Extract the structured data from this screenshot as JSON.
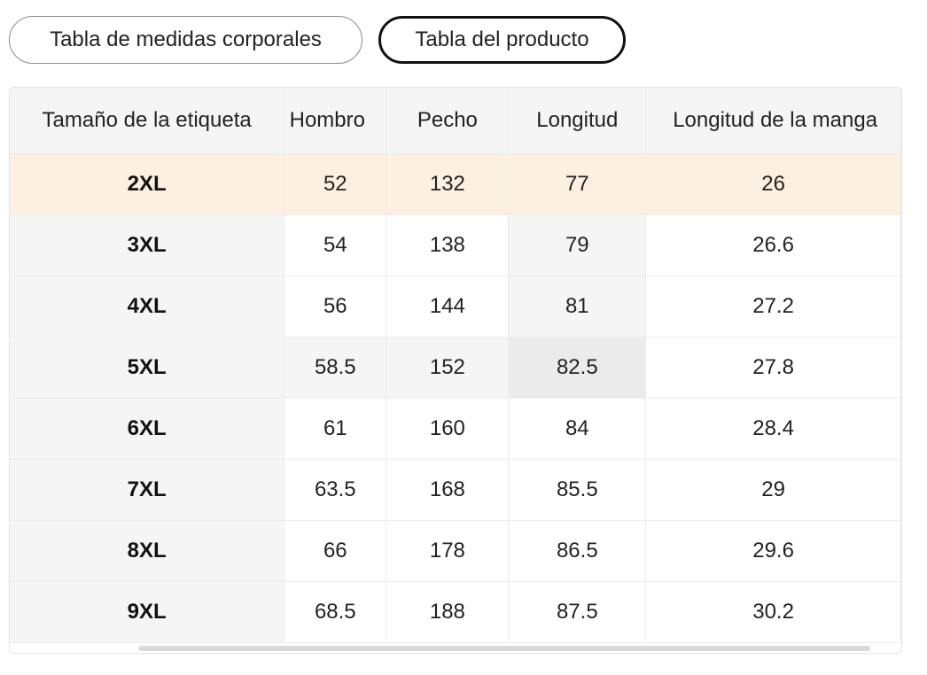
{
  "tabs": [
    {
      "label": "Tabla de medidas corporales",
      "active": false
    },
    {
      "label": "Tabla del producto",
      "active": true
    }
  ],
  "table": {
    "headers": [
      "Tamaño de la etiqueta",
      "Hombro",
      "Pecho",
      "Longitud",
      "Longitud de la manga"
    ],
    "rows": [
      [
        "2XL",
        "52",
        "132",
        "77",
        "26"
      ],
      [
        "3XL",
        "54",
        "138",
        "79",
        "26.6"
      ],
      [
        "4XL",
        "56",
        "144",
        "81",
        "27.2"
      ],
      [
        "5XL",
        "58.5",
        "152",
        "82.5",
        "27.8"
      ],
      [
        "6XL",
        "61",
        "160",
        "84",
        "28.4"
      ],
      [
        "7XL",
        "63.5",
        "168",
        "85.5",
        "29"
      ],
      [
        "8XL",
        "66",
        "178",
        "86.5",
        "29.6"
      ],
      [
        "9XL",
        "68.5",
        "188",
        "87.5",
        "30.2"
      ]
    ]
  },
  "colors": {
    "highlight_row": "#fdf0e1",
    "header_bg": "#f5f5f5",
    "active_tab_border": "#111111"
  }
}
